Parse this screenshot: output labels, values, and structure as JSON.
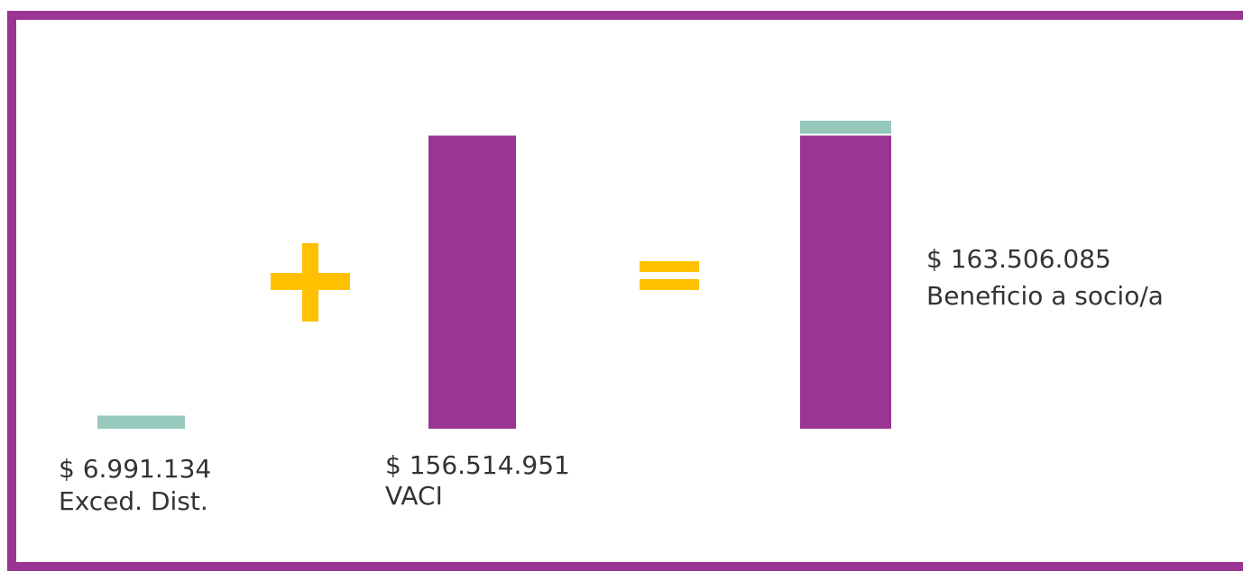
{
  "chart_data": {
    "type": "bar",
    "categories": [
      "Exced. Dist.",
      "VACI",
      "Beneficio a socio/a"
    ],
    "values": [
      6991134,
      156514951,
      163506085
    ],
    "value_labels": [
      "$ 6.991.134",
      "$ 156.514.951",
      "$ 163.506.085"
    ],
    "colors": [
      "#96c8bc",
      "#9b3593"
    ]
  }
}
